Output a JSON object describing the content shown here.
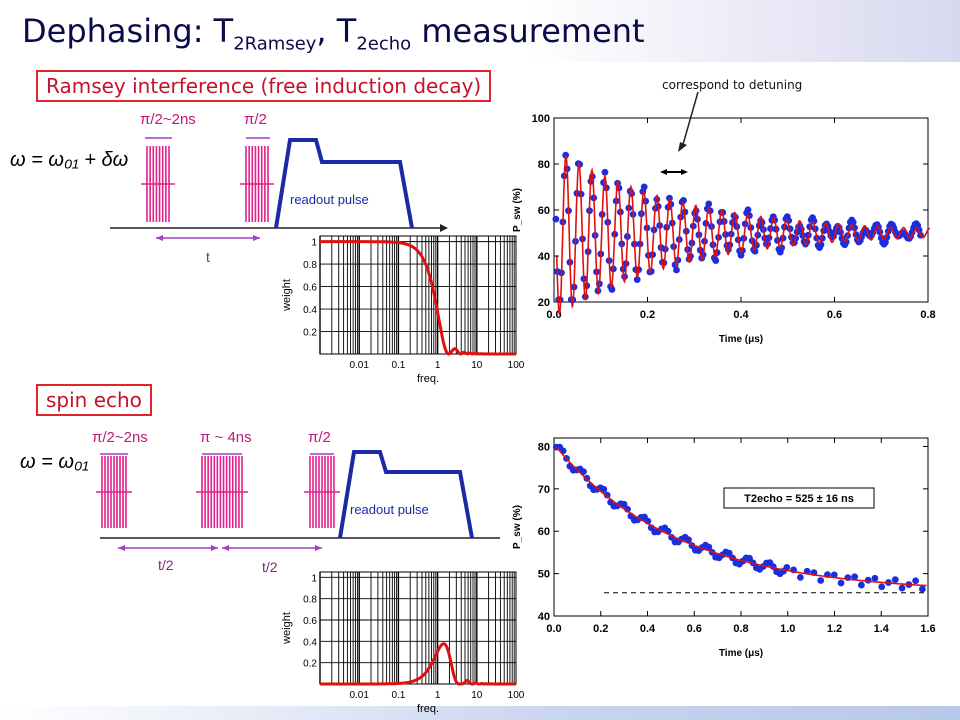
{
  "header": {
    "title_main": "Dephasing: T",
    "title_sub1": "2Ramsey",
    "title_sep": ", T",
    "title_sub2": "2echo",
    "title_end": " measurement"
  },
  "ramsey": {
    "label": "Ramsey interference (free induction decay)",
    "pulse1_label": "π/2~2ns",
    "pulse2_label": "π/2",
    "equation": "ω = ω₀₁ + δω",
    "readout_label": "readout pulse",
    "delay_label": "t"
  },
  "echo": {
    "label": "spin echo",
    "pulse1_label": "π/2~2ns",
    "pulse2_label": "π ~ 4ns",
    "pulse3_label": "π/2",
    "equation": "ω = ω₀₁",
    "readout_label": "readout pulse",
    "delay1_label": "t/2",
    "delay2_label": "t/2"
  },
  "annotation": {
    "detuning": "correspond to detuning"
  },
  "colors": {
    "pulse": "#e0208c",
    "readout": "#1c2aa8",
    "data": "#1a2ee0",
    "fit": "#e01010",
    "arrow": "#a040c0",
    "title": "#0b0b4a",
    "label_red": "#c4122a"
  },
  "chart_data": [
    {
      "type": "scatter",
      "name_id": "ramsey-plot",
      "xlabel": "Time (μs)",
      "ylabel": "P_sw (%)",
      "xlim": [
        0,
        0.8
      ],
      "ylim": [
        20,
        100
      ],
      "xticks": [
        "0.0",
        "0.2",
        "0.4",
        "0.6",
        "0.8"
      ],
      "yticks": [
        "20",
        "40",
        "60",
        "80",
        "100"
      ],
      "model": {
        "baseline": 50,
        "amplitude": 37,
        "decay_us": 0.27,
        "freq_per_us": 36,
        "phase": 0.5
      },
      "series": [
        {
          "role": "data",
          "marker": "circle"
        },
        {
          "role": "fit",
          "style": "line"
        }
      ]
    },
    {
      "type": "scatter",
      "name_id": "echo-plot",
      "xlabel": "Time (μs)",
      "ylabel": "P_sw (%)",
      "xlim": [
        0,
        1.6
      ],
      "ylim": [
        40,
        82
      ],
      "xticks": [
        "0.0",
        "0.2",
        "0.4",
        "0.6",
        "0.8",
        "1.0",
        "1.2",
        "1.4",
        "1.6"
      ],
      "yticks": [
        "40",
        "50",
        "60",
        "70",
        "80"
      ],
      "legend": "T2echo = 525 ± 16 ns",
      "baseline_dashed": 45.5,
      "model": {
        "baseline": 45.5,
        "amplitude": 35,
        "decay_us": 0.525
      },
      "series": [
        {
          "role": "data",
          "marker": "circle"
        },
        {
          "role": "fit",
          "style": "line"
        }
      ]
    },
    {
      "type": "line",
      "name_id": "ramsey-weight-plot",
      "xlabel": "freq.",
      "ylabel": "weight",
      "xscale": "log",
      "xlim": [
        0.001,
        100
      ],
      "ylim": [
        0,
        1.05
      ],
      "xticks": [
        "0.01",
        "0.1",
        "1",
        "10",
        "100"
      ],
      "yticks": [
        "0.2",
        "0.4",
        "0.6",
        "0.8",
        "1"
      ],
      "shape": "low-pass"
    },
    {
      "type": "line",
      "name_id": "echo-weight-plot",
      "xlabel": "freq.",
      "ylabel": "weight",
      "xscale": "log",
      "xlim": [
        0.001,
        100
      ],
      "ylim": [
        0,
        1.05
      ],
      "xticks": [
        "0.01",
        "0.1",
        "1",
        "10",
        "100"
      ],
      "yticks": [
        "0.2",
        "0.4",
        "0.6",
        "0.8",
        "1"
      ],
      "shape": "band-pass"
    }
  ]
}
